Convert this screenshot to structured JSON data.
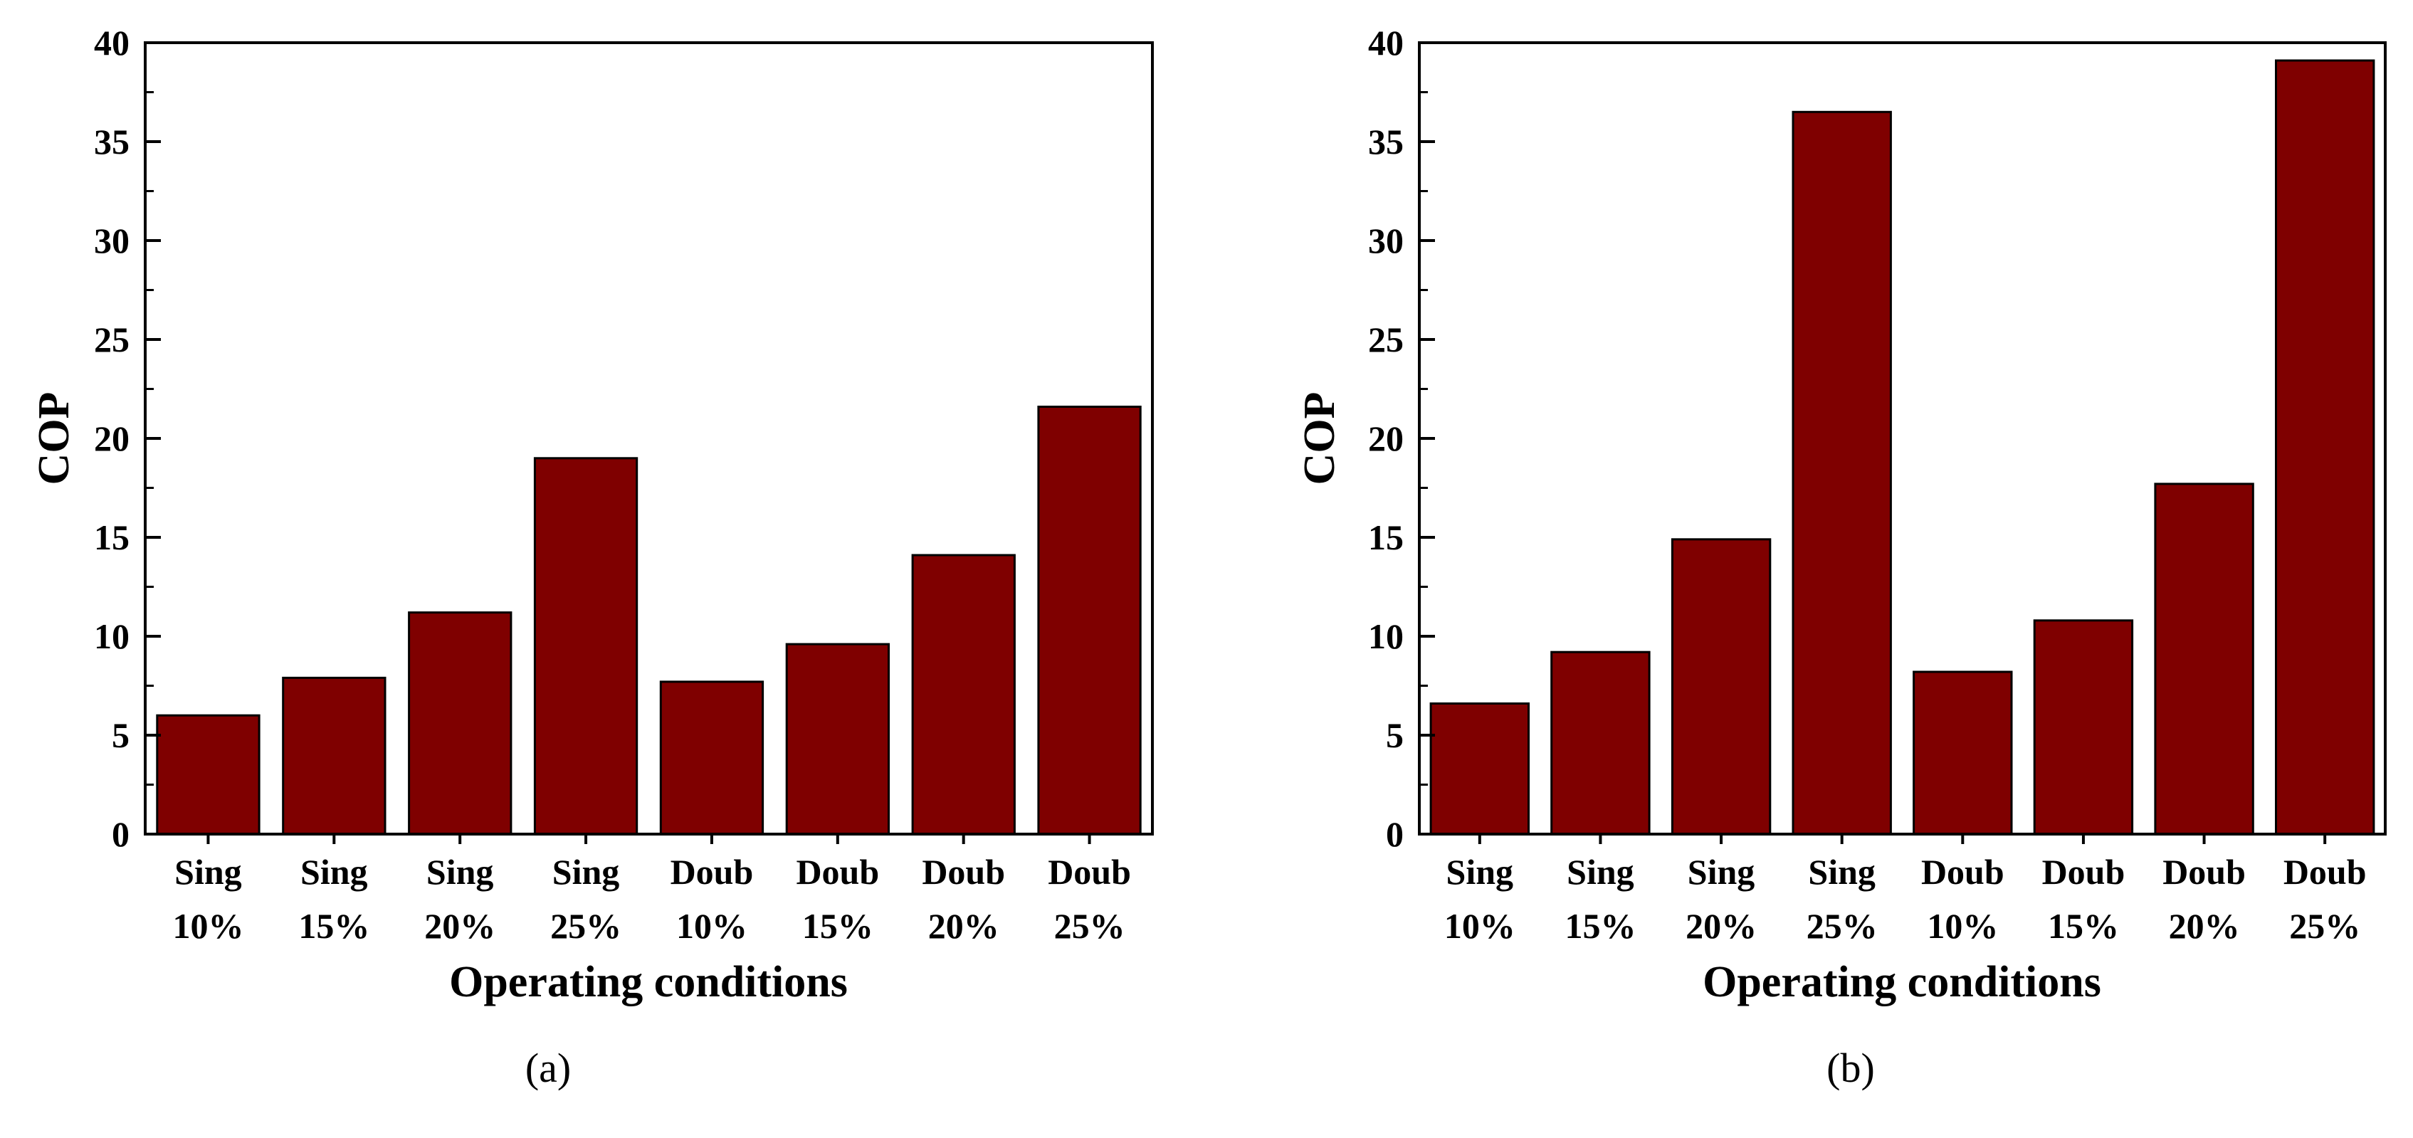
{
  "colors": {
    "bar": "#7f0000",
    "axis": "#000000",
    "background": "#ffffff"
  },
  "chart_data": [
    {
      "type": "bar",
      "panel_label": "(a)",
      "title": "",
      "xlabel": "Operating conditions",
      "ylabel": "COP",
      "ylim": [
        0,
        40
      ],
      "yticks": [
        "0",
        "5",
        "10",
        "15",
        "20",
        "25",
        "30",
        "35",
        "40"
      ],
      "grid": false,
      "categories": [
        [
          "Sing",
          "10%"
        ],
        [
          "Sing",
          "15%"
        ],
        [
          "Sing",
          "20%"
        ],
        [
          "Sing",
          "25%"
        ],
        [
          "Doub",
          "10%"
        ],
        [
          "Doub",
          "15%"
        ],
        [
          "Doub",
          "20%"
        ],
        [
          "Doub",
          "25%"
        ]
      ],
      "values": [
        6.0,
        7.9,
        11.2,
        19.0,
        7.7,
        9.6,
        14.1,
        21.6
      ]
    },
    {
      "type": "bar",
      "panel_label": "(b)",
      "title": "",
      "xlabel": "Operating conditions",
      "ylabel": "COP",
      "ylim": [
        0,
        40
      ],
      "yticks": [
        "0",
        "5",
        "10",
        "15",
        "20",
        "25",
        "30",
        "35",
        "40"
      ],
      "grid": false,
      "categories": [
        [
          "Sing",
          "10%"
        ],
        [
          "Sing",
          "15%"
        ],
        [
          "Sing",
          "20%"
        ],
        [
          "Sing",
          "25%"
        ],
        [
          "Doub",
          "10%"
        ],
        [
          "Doub",
          "15%"
        ],
        [
          "Doub",
          "20%"
        ],
        [
          "Doub",
          "25%"
        ]
      ],
      "values": [
        6.6,
        9.2,
        14.9,
        36.5,
        8.2,
        10.8,
        17.7,
        39.1
      ]
    }
  ]
}
